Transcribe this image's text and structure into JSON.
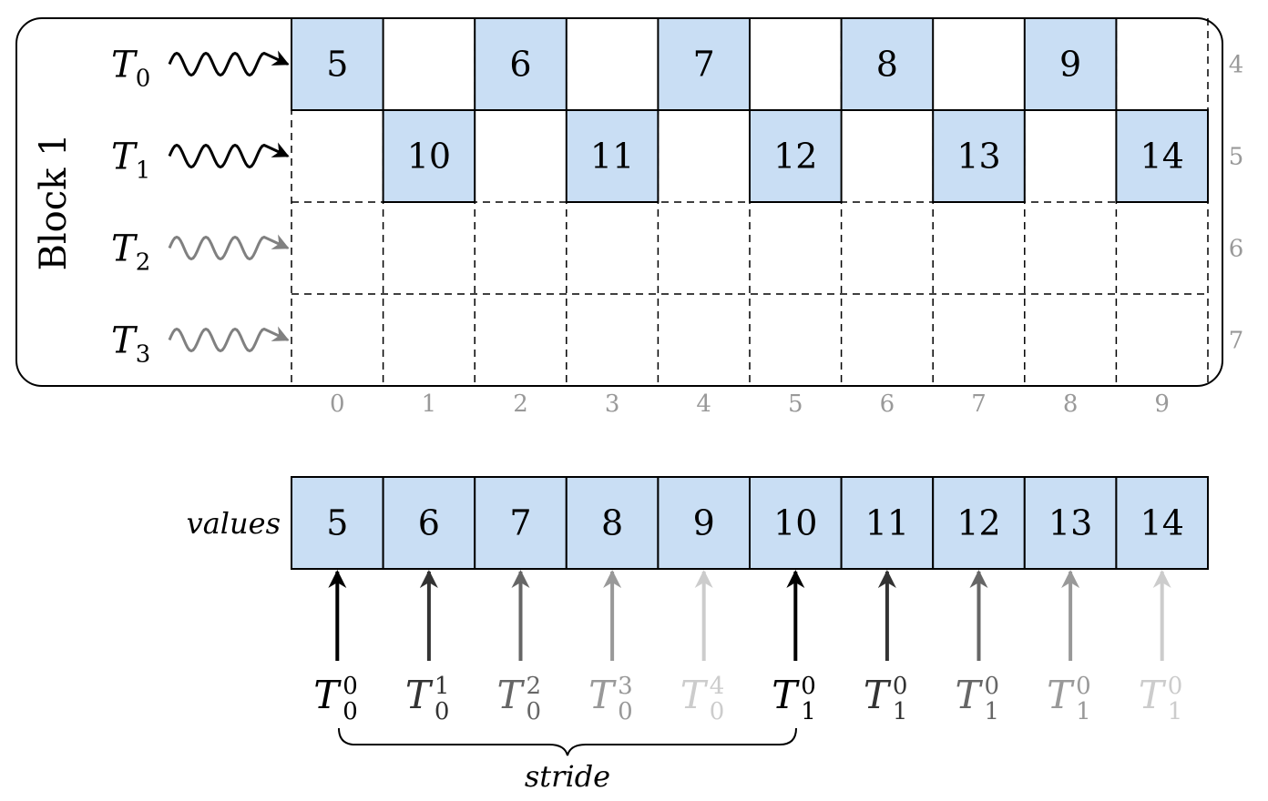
{
  "block": {
    "label": "Block 1"
  },
  "threads": [
    {
      "name": "T",
      "sub": "0",
      "state": "active"
    },
    {
      "name": "T",
      "sub": "1",
      "state": "active"
    },
    {
      "name": "T",
      "sub": "2",
      "state": "idle"
    },
    {
      "name": "T",
      "sub": "3",
      "state": "idle"
    }
  ],
  "row_indices": [
    "4",
    "5",
    "6",
    "7"
  ],
  "col_indices": [
    "0",
    "1",
    "2",
    "3",
    "4",
    "5",
    "6",
    "7",
    "8",
    "9"
  ],
  "grid_cells": [
    {
      "thread": 0,
      "col": 0,
      "value": "5"
    },
    {
      "thread": 0,
      "col": 2,
      "value": "6"
    },
    {
      "thread": 0,
      "col": 4,
      "value": "7"
    },
    {
      "thread": 0,
      "col": 6,
      "value": "8"
    },
    {
      "thread": 0,
      "col": 8,
      "value": "9"
    },
    {
      "thread": 1,
      "col": 1,
      "value": "10"
    },
    {
      "thread": 1,
      "col": 3,
      "value": "11"
    },
    {
      "thread": 1,
      "col": 5,
      "value": "12"
    },
    {
      "thread": 1,
      "col": 7,
      "value": "13"
    },
    {
      "thread": 1,
      "col": 9,
      "value": "14"
    }
  ],
  "values_array": {
    "label": "values",
    "items": [
      "5",
      "6",
      "7",
      "8",
      "9",
      "10",
      "11",
      "12",
      "13",
      "14"
    ]
  },
  "access_labels": [
    {
      "base": "T",
      "sub": "0",
      "sup": "0",
      "shade": 0
    },
    {
      "base": "T",
      "sub": "0",
      "sup": "1",
      "shade": 1
    },
    {
      "base": "T",
      "sub": "0",
      "sup": "2",
      "shade": 2
    },
    {
      "base": "T",
      "sub": "0",
      "sup": "3",
      "shade": 3
    },
    {
      "base": "T",
      "sub": "0",
      "sup": "4",
      "shade": 4
    },
    {
      "base": "T",
      "sub": "1",
      "sup": "0",
      "shade": 0
    },
    {
      "base": "T",
      "sub": "1",
      "sup": "0",
      "shade": 1
    },
    {
      "base": "T",
      "sub": "1",
      "sup": "0",
      "shade": 2
    },
    {
      "base": "T",
      "sub": "1",
      "sup": "0",
      "shade": 3
    },
    {
      "base": "T",
      "sub": "1",
      "sup": "0",
      "shade": 4
    }
  ],
  "stride_label": "stride",
  "colors": {
    "cell_fill": "#c9def4",
    "border": "#000000",
    "index_text": "#999999",
    "active_wave": "#000000",
    "idle_wave": "#808080",
    "shades": [
      "#000000",
      "#333333",
      "#666666",
      "#999999",
      "#cccccc"
    ]
  }
}
